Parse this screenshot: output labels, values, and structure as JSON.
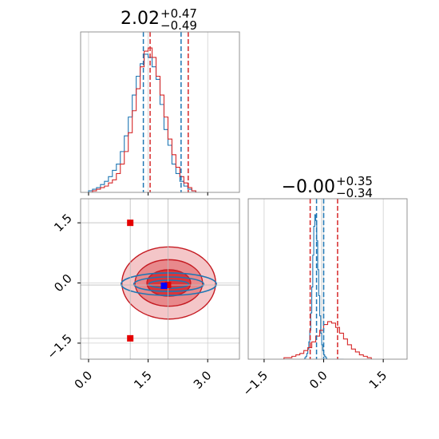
{
  "chart_data": [
    {
      "type": "step-histogram",
      "panel": "x marginal (top-left)",
      "title_value": "2.02",
      "title_plus": "+0.47",
      "title_minus": "−0.49",
      "xlim": [
        -0.2,
        3.8
      ],
      "xticks": [
        0.0,
        1.5,
        3.0
      ],
      "quantile_lines": {
        "blue": [
          1.38,
          2.33
        ],
        "red": [
          1.55,
          2.51
        ]
      },
      "series": [
        {
          "color": "#1f77b4",
          "bin_start": 0.0,
          "bin_width": 0.1,
          "values": [
            1,
            2,
            3,
            5,
            7,
            10,
            14,
            18,
            26,
            36,
            48,
            62,
            74,
            82,
            88,
            86,
            80,
            72,
            56,
            40,
            30,
            18,
            12,
            7,
            4,
            2,
            1,
            0
          ]
        },
        {
          "color": "#d62728",
          "bin_start": 0.0,
          "bin_width": 0.1,
          "values": [
            0,
            1,
            2,
            3,
            4,
            6,
            8,
            12,
            18,
            26,
            38,
            52,
            66,
            80,
            90,
            92,
            86,
            74,
            62,
            48,
            34,
            24,
            16,
            10,
            6,
            3,
            1,
            0
          ]
        }
      ]
    },
    {
      "type": "contour-scatter",
      "panel": "joint (bottom-left)",
      "xlim": [
        -0.2,
        3.8
      ],
      "ylim": [
        -1.9,
        2.1
      ],
      "xticks": [
        0.0,
        1.5,
        3.0
      ],
      "yticks": [
        -1.5,
        0.0,
        1.5
      ],
      "red_contours": [
        {
          "cx": 2.02,
          "cy": 0.0,
          "rx": 1.18,
          "ry": 0.9
        },
        {
          "cx": 2.02,
          "cy": 0.0,
          "rx": 0.85,
          "ry": 0.58
        },
        {
          "cx": 2.02,
          "cy": 0.0,
          "rx": 0.55,
          "ry": 0.33
        }
      ],
      "blue_contours": [
        {
          "cx": 2.02,
          "cy": -0.03,
          "rx": 1.2,
          "ry": 0.28
        },
        {
          "cx": 2.02,
          "cy": -0.03,
          "rx": 0.88,
          "ry": 0.18
        },
        {
          "cx": 2.02,
          "cy": -0.03,
          "rx": 0.5,
          "ry": 0.1
        }
      ],
      "markers": [
        {
          "x": 1.05,
          "y": 1.5,
          "color": "#e50000"
        },
        {
          "x": 1.05,
          "y": -1.38,
          "color": "#e50000"
        },
        {
          "x": 2.0,
          "y": -0.05,
          "color": "#e50000"
        },
        {
          "x": 1.9,
          "y": -0.07,
          "color": "#0000ff"
        }
      ],
      "reference_lines": {
        "x": [
          1.05,
          2.0
        ],
        "y": [
          1.5,
          -0.05,
          -1.38
        ]
      }
    },
    {
      "type": "step-histogram",
      "panel": "y marginal (bottom-right)",
      "title_value": "−0.00",
      "title_plus": "+0.35",
      "title_minus": "−0.34",
      "xlim": [
        -1.9,
        2.1
      ],
      "xticks": [
        -1.5,
        0.0,
        1.5
      ],
      "quantile_lines": {
        "blue": [
          -0.18,
          0.0
        ],
        "red": [
          -0.34,
          0.35
        ]
      },
      "reference_lines": [
        -0.05
      ],
      "series": [
        {
          "color": "#1f77b4",
          "bin_start": -0.5,
          "bin_width": 0.025,
          "values": [
            0,
            1,
            2,
            4,
            7,
            12,
            20,
            32,
            50,
            72,
            92,
            100,
            96,
            82,
            62,
            44,
            30,
            18,
            10,
            6,
            3,
            2,
            1,
            0,
            0,
            0,
            0,
            0,
            0,
            0,
            0,
            0,
            0,
            0,
            0,
            0,
            0,
            0,
            0,
            0
          ]
        },
        {
          "color": "#d62728",
          "bin_start": -1.0,
          "bin_width": 0.1,
          "values": [
            1,
            1,
            2,
            3,
            4,
            6,
            8,
            12,
            16,
            20,
            24,
            26,
            25,
            22,
            18,
            14,
            10,
            7,
            5,
            3,
            2,
            1
          ]
        }
      ]
    }
  ]
}
